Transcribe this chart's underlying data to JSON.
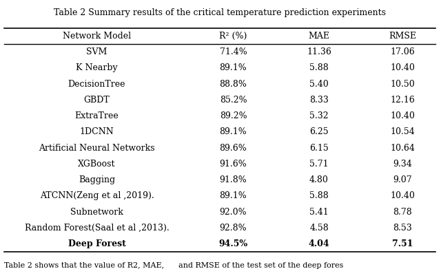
{
  "title": "Table 2 Summary results of the critical temperature prediction experiments",
  "col_headers": [
    "Network Model",
    "R² (%)",
    "MAE",
    "RMSE"
  ],
  "rows": [
    [
      "SVM",
      "71.4%",
      "11.36",
      "17.06"
    ],
    [
      "K Nearby",
      "89.1%",
      "5.88",
      "10.40"
    ],
    [
      "DecisionTree",
      "88.8%",
      "5.40",
      "10.50"
    ],
    [
      "GBDT",
      "85.2%",
      "8.33",
      "12.16"
    ],
    [
      "ExtraTree",
      "89.2%",
      "5.32",
      "10.40"
    ],
    [
      "1DCNN",
      "89.1%",
      "6.25",
      "10.54"
    ],
    [
      "Artificial Neural Networks",
      "89.6%",
      "6.15",
      "10.64"
    ],
    [
      "XGBoost",
      "91.6%",
      "5.71",
      "9.34"
    ],
    [
      "Bagging",
      "91.8%",
      "4.80",
      "9.07"
    ],
    [
      "ATCNN(Zeng et al ,2019).",
      "89.1%",
      "5.88",
      "10.40"
    ],
    [
      "Subnetwork",
      "92.0%",
      "5.41",
      "8.78"
    ],
    [
      "Random Forest(Saal et al ,2013).",
      "92.8%",
      "4.58",
      "8.53"
    ],
    [
      "Deep Forest",
      "94.5%",
      "4.04",
      "7.51"
    ]
  ],
  "last_row_bold": true,
  "footer": "Table 2 shows that the value of R2, MAE,      and RMSE of the test set of the deep fores",
  "bg_color": "#ffffff",
  "text_color": "#000000",
  "font_size": 9,
  "header_font_size": 9,
  "title_font_size": 9
}
